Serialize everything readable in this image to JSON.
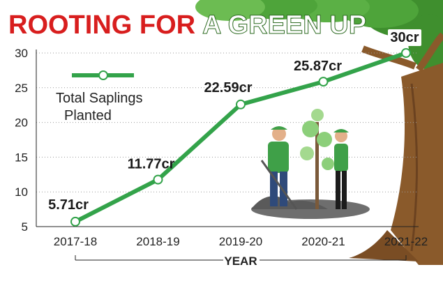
{
  "title": {
    "part1": "ROOTING FOR",
    "part2": "A GREEN UP"
  },
  "legend": {
    "line1": "Total Saplings",
    "line2": "Planted"
  },
  "colors": {
    "title_red": "#d81e1e",
    "line": "#33a34a",
    "marker_fill": "#ffffff",
    "tree_trunk": "#8a5a2b",
    "foliage": "#3f8f2e"
  },
  "chart_data": {
    "type": "line",
    "title": "ROOTING FOR A GREEN UP",
    "xlabel": "YEAR",
    "ylabel": "",
    "categories": [
      "2017-18",
      "2018-19",
      "2019-20",
      "2020-21",
      "2021-22"
    ],
    "series": [
      {
        "name": "Total Saplings Planted",
        "values": [
          5.71,
          11.77,
          22.59,
          25.87,
          30
        ],
        "labels": [
          "5.71cr",
          "11.77cr",
          "22.59cr",
          "25.87cr",
          "30cr"
        ]
      }
    ],
    "ylim": [
      5,
      30
    ],
    "yticks": [
      5,
      10,
      15,
      20,
      25,
      30
    ],
    "grid": "horizontal dotted",
    "legend_position": "top-left"
  }
}
